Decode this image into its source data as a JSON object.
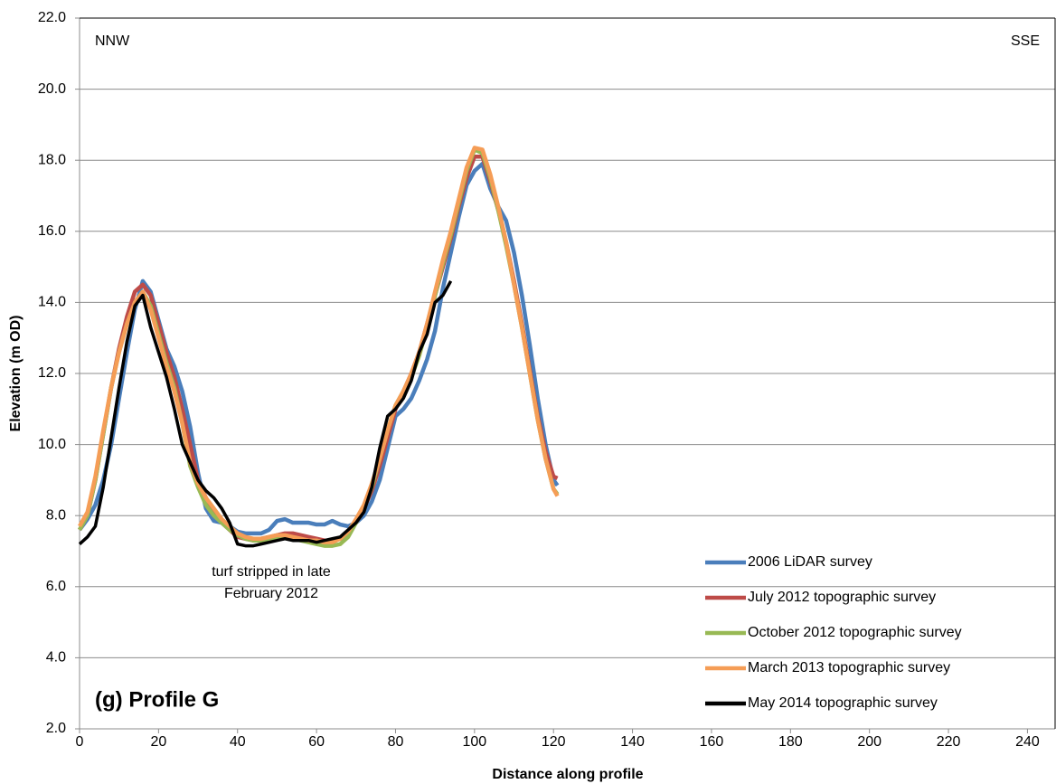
{
  "chart_data": {
    "type": "line",
    "xlabel": "Distance along profile",
    "ylabel": "Elevation (m OD)",
    "panel_label": "(g) Profile G",
    "left_direction": "NNW",
    "right_direction": "SSE",
    "note_lines": [
      "turf stripped in late",
      "February 2012"
    ],
    "xlim": [
      0,
      247
    ],
    "xticks": [
      0,
      20,
      40,
      60,
      80,
      100,
      120,
      140,
      160,
      180,
      200,
      220,
      240
    ],
    "ylim": [
      2,
      22
    ],
    "yticks": [
      {
        "value": 2,
        "label": "2.0"
      },
      {
        "value": 4,
        "label": "4.0"
      },
      {
        "value": 6,
        "label": "6.0"
      },
      {
        "value": 8,
        "label": "8.0"
      },
      {
        "value": 10,
        "label": "10.0"
      },
      {
        "value": 12,
        "label": "12.0"
      },
      {
        "value": 14,
        "label": "14.0"
      },
      {
        "value": 16,
        "label": "16.0"
      },
      {
        "value": 18,
        "label": "18.0"
      },
      {
        "value": 20,
        "label": "20.0"
      },
      {
        "value": 22,
        "label": "22.0"
      }
    ],
    "grid": true,
    "legend": "lower right",
    "series": [
      {
        "name": "2006 LiDAR survey",
        "color": "#4a7ebb",
        "x": [
          0,
          2,
          4,
          6,
          8,
          10,
          12,
          14,
          16,
          18,
          20,
          22,
          24,
          26,
          28,
          30,
          32,
          34,
          36,
          38,
          40,
          42,
          44,
          46,
          48,
          50,
          52,
          54,
          56,
          58,
          60,
          62,
          64,
          66,
          68,
          70,
          72,
          74,
          76,
          78,
          80,
          82,
          84,
          86,
          88,
          90,
          92,
          94,
          96,
          98,
          100,
          102,
          104,
          106,
          108,
          110,
          112,
          114,
          116,
          118,
          120,
          121
        ],
        "values": [
          7.6,
          7.9,
          8.3,
          9.0,
          10.0,
          11.3,
          12.6,
          13.8,
          14.6,
          14.3,
          13.5,
          12.7,
          12.2,
          11.5,
          10.5,
          9.2,
          8.2,
          7.85,
          7.8,
          7.7,
          7.55,
          7.5,
          7.5,
          7.5,
          7.6,
          7.85,
          7.9,
          7.8,
          7.8,
          7.8,
          7.75,
          7.75,
          7.85,
          7.75,
          7.7,
          7.8,
          8.0,
          8.4,
          9.0,
          9.9,
          10.8,
          11.0,
          11.3,
          11.8,
          12.4,
          13.2,
          14.4,
          15.4,
          16.4,
          17.3,
          17.7,
          17.9,
          17.2,
          16.7,
          16.3,
          15.4,
          14.2,
          12.8,
          11.3,
          10.0,
          9.0,
          8.85
        ]
      },
      {
        "name": "July 2012 topographic survey",
        "color": "#be4b48",
        "x": [
          0,
          2,
          4,
          6,
          8,
          10,
          12,
          14,
          16,
          18,
          20,
          22,
          24,
          26,
          28,
          30,
          32,
          34,
          36,
          38,
          40,
          42,
          44,
          46,
          48,
          50,
          52,
          54,
          56,
          58,
          60,
          62,
          64,
          66,
          68,
          70,
          72,
          74,
          76,
          78,
          80,
          82,
          84,
          86,
          88,
          90,
          92,
          94,
          96,
          98,
          100,
          102,
          104,
          106,
          108,
          110,
          112,
          114,
          116,
          118,
          120,
          121
        ],
        "values": [
          7.6,
          8.0,
          9.0,
          10.3,
          11.6,
          12.7,
          13.6,
          14.3,
          14.5,
          14.2,
          13.4,
          12.6,
          11.9,
          11.0,
          10.0,
          9.0,
          8.5,
          8.1,
          7.8,
          7.6,
          7.4,
          7.35,
          7.3,
          7.35,
          7.4,
          7.45,
          7.5,
          7.5,
          7.45,
          7.4,
          7.35,
          7.3,
          7.3,
          7.35,
          7.5,
          7.8,
          8.2,
          8.7,
          9.4,
          10.2,
          11.0,
          11.5,
          12.0,
          12.6,
          13.4,
          14.2,
          15.0,
          15.8,
          16.7,
          17.5,
          18.1,
          18.1,
          17.4,
          16.6,
          15.7,
          14.6,
          13.4,
          12.1,
          10.8,
          9.8,
          9.1,
          9.05
        ]
      },
      {
        "name": "October 2012 topographic survey",
        "color": "#98b954",
        "x": [
          0,
          2,
          4,
          6,
          8,
          10,
          12,
          14,
          16,
          18,
          20,
          22,
          24,
          26,
          28,
          30,
          32,
          34,
          36,
          38,
          40,
          42,
          44,
          46,
          48,
          50,
          52,
          54,
          56,
          58,
          60,
          62,
          64,
          66,
          68,
          70,
          72,
          74,
          76,
          78,
          80,
          82,
          84,
          86,
          88,
          90,
          92,
          94,
          96,
          98,
          100,
          102,
          104,
          106,
          108,
          110,
          112,
          114,
          116,
          118,
          120,
          121
        ],
        "values": [
          7.6,
          8.0,
          9.0,
          10.3,
          11.6,
          12.6,
          13.4,
          14.0,
          14.3,
          13.9,
          13.1,
          12.3,
          11.6,
          10.6,
          9.4,
          8.8,
          8.3,
          8.0,
          7.8,
          7.6,
          7.45,
          7.35,
          7.3,
          7.3,
          7.35,
          7.4,
          7.4,
          7.35,
          7.3,
          7.25,
          7.2,
          7.15,
          7.15,
          7.2,
          7.4,
          7.8,
          8.2,
          8.8,
          9.6,
          10.4,
          11.1,
          11.5,
          11.9,
          12.5,
          13.3,
          14.2,
          15.1,
          15.9,
          16.8,
          17.7,
          18.3,
          18.2,
          17.5,
          16.6,
          15.6,
          14.5,
          13.3,
          12.0,
          10.7,
          9.6,
          8.75,
          8.6
        ]
      },
      {
        "name": "March 2013 topographic survey",
        "color": "#f59d56",
        "x": [
          0,
          2,
          4,
          6,
          8,
          10,
          12,
          14,
          16,
          18,
          20,
          22,
          24,
          26,
          28,
          30,
          32,
          34,
          36,
          38,
          40,
          42,
          44,
          46,
          48,
          50,
          52,
          54,
          56,
          58,
          60,
          62,
          64,
          66,
          68,
          70,
          72,
          74,
          76,
          78,
          80,
          82,
          84,
          86,
          88,
          90,
          92,
          94,
          96,
          98,
          100,
          102,
          104,
          106,
          108,
          110,
          112,
          114,
          116,
          118,
          120,
          121
        ],
        "values": [
          7.7,
          8.1,
          9.1,
          10.4,
          11.6,
          12.6,
          13.4,
          14.0,
          14.3,
          13.8,
          13.0,
          12.2,
          11.5,
          10.6,
          9.5,
          8.9,
          8.5,
          8.2,
          7.9,
          7.7,
          7.5,
          7.4,
          7.35,
          7.35,
          7.4,
          7.45,
          7.45,
          7.4,
          7.35,
          7.3,
          7.3,
          7.25,
          7.25,
          7.35,
          7.55,
          7.9,
          8.3,
          8.9,
          9.6,
          10.4,
          11.1,
          11.5,
          12.0,
          12.6,
          13.4,
          14.3,
          15.2,
          16.0,
          16.9,
          17.8,
          18.35,
          18.3,
          17.6,
          16.7,
          15.7,
          14.5,
          13.3,
          12.0,
          10.7,
          9.6,
          8.75,
          8.55
        ]
      },
      {
        "name": "May 2014 topographic survey",
        "color": "#000000",
        "x": [
          0,
          2,
          4,
          6,
          8,
          10,
          12,
          14,
          16,
          18,
          20,
          22,
          24,
          26,
          28,
          30,
          32,
          34,
          36,
          38,
          40,
          42,
          44,
          46,
          48,
          50,
          52,
          54,
          56,
          58,
          60,
          62,
          64,
          66,
          68,
          70,
          72,
          74,
          76,
          78,
          80,
          82,
          84,
          86,
          88,
          90,
          92,
          94
        ],
        "values": [
          7.2,
          7.4,
          7.7,
          8.8,
          10.2,
          11.6,
          12.9,
          13.9,
          14.2,
          13.3,
          12.6,
          11.9,
          11.0,
          10.0,
          9.5,
          9.0,
          8.7,
          8.5,
          8.2,
          7.8,
          7.2,
          7.15,
          7.15,
          7.2,
          7.25,
          7.3,
          7.35,
          7.3,
          7.3,
          7.3,
          7.25,
          7.3,
          7.35,
          7.4,
          7.6,
          7.8,
          8.1,
          8.8,
          9.9,
          10.8,
          11.0,
          11.3,
          11.8,
          12.6,
          13.1,
          14.0,
          14.2,
          14.6
        ]
      }
    ]
  }
}
